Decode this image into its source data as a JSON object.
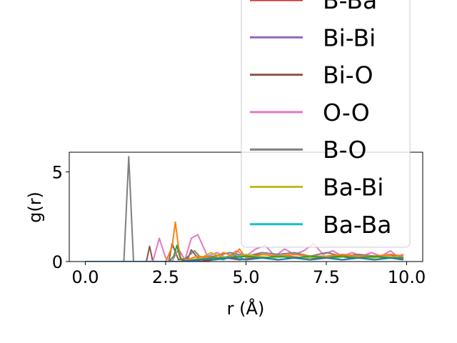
{
  "chart_data": {
    "type": "line",
    "xlabel": "r (Å)",
    "ylabel": "g(r)",
    "xlim": [
      -0.5,
      10.5
    ],
    "ylim": [
      0,
      6.1
    ],
    "xticks": [
      0.0,
      2.5,
      5.0,
      7.5,
      10.0
    ],
    "xtick_labels": [
      "0.0",
      "2.5",
      "5.0",
      "7.5",
      "10.0"
    ],
    "yticks": [
      0,
      5
    ],
    "ytick_labels": [
      "0",
      "5"
    ],
    "grid": false,
    "legend_placement": "top-right",
    "legend_entries": [
      "B-Ba",
      "Bi-Bi",
      "Bi-O",
      "O-O",
      "B-O",
      "Ba-Bi",
      "Ba-Ba"
    ],
    "series": [
      {
        "name": "B-Ba",
        "color": "#d62728",
        "x": [
          0.0,
          1.0,
          2.0,
          3.0,
          3.4,
          3.6,
          4.0,
          4.4,
          4.8,
          5.3,
          5.8,
          6.3,
          6.8,
          7.3,
          7.8,
          8.3,
          8.8,
          9.3,
          9.9
        ],
        "y": [
          0.0,
          0.0,
          0.0,
          0.0,
          0.1,
          0.0,
          0.1,
          0.2,
          0.1,
          0.2,
          0.2,
          0.3,
          0.2,
          0.2,
          0.3,
          0.2,
          0.3,
          0.2,
          0.2
        ]
      },
      {
        "name": "Bi-Bi",
        "color": "#9467bd",
        "x": [
          0.0,
          1.0,
          2.0,
          3.0,
          3.4,
          3.7,
          4.0,
          4.5,
          5.0,
          5.5,
          6.0,
          6.5,
          7.0,
          7.5,
          8.0,
          8.5,
          9.0,
          9.5,
          9.9
        ],
        "y": [
          0.0,
          0.0,
          0.0,
          0.0,
          0.0,
          0.3,
          0.1,
          0.2,
          0.3,
          0.2,
          0.3,
          0.2,
          0.3,
          0.2,
          0.3,
          0.2,
          0.3,
          0.2,
          0.3
        ]
      },
      {
        "name": "Bi-O",
        "color": "#8c564b",
        "x": [
          0.0,
          1.9,
          2.0,
          2.1,
          2.3,
          2.6,
          2.7,
          2.9,
          3.2,
          3.3,
          3.5,
          3.8,
          4.1,
          4.5,
          5.0,
          5.5,
          6.0,
          6.5,
          7.0,
          7.5,
          8.0,
          8.5,
          9.0,
          9.5,
          9.9
        ],
        "y": [
          0.0,
          0.0,
          0.85,
          0.0,
          0.0,
          0.0,
          1.0,
          0.1,
          0.2,
          0.65,
          0.2,
          0.3,
          0.2,
          0.3,
          0.3,
          0.4,
          0.3,
          0.4,
          0.3,
          0.3,
          0.3,
          0.4,
          0.3,
          0.3,
          0.3
        ]
      },
      {
        "name": "O-O",
        "color": "#e377c2",
        "x": [
          0.0,
          2.1,
          2.3,
          2.5,
          2.7,
          2.9,
          3.1,
          3.3,
          3.5,
          3.8,
          4.1,
          4.4,
          4.7,
          5.0,
          5.3,
          5.6,
          5.9,
          6.2,
          6.5,
          6.8,
          7.1,
          7.4,
          7.7,
          8.0,
          8.3,
          8.6,
          8.9,
          9.2,
          9.5,
          9.7,
          9.9
        ],
        "y": [
          0.0,
          0.0,
          1.3,
          0.2,
          0.0,
          0.7,
          0.1,
          1.3,
          1.5,
          0.3,
          0.5,
          0.2,
          0.6,
          0.3,
          0.7,
          0.9,
          0.3,
          0.7,
          0.4,
          0.6,
          1.0,
          0.4,
          0.6,
          0.3,
          0.5,
          0.3,
          0.5,
          0.3,
          0.6,
          0.3,
          0.4
        ]
      },
      {
        "name": "B-O",
        "color": "#7f7f7f",
        "x": [
          0.0,
          1.2,
          1.35,
          1.5,
          3.0,
          3.2,
          3.4,
          3.6,
          4.0,
          4.5,
          5.0,
          5.5,
          6.0,
          6.5,
          7.0,
          7.5,
          8.0,
          8.5,
          9.0,
          9.5,
          9.9
        ],
        "y": [
          0.0,
          0.0,
          5.85,
          0.0,
          0.0,
          0.3,
          0.6,
          0.2,
          0.3,
          0.5,
          0.3,
          0.5,
          0.4,
          0.5,
          0.3,
          0.5,
          0.3,
          0.4,
          0.3,
          0.4,
          0.3
        ]
      },
      {
        "name": "Ba-Bi",
        "color": "#bcbd22",
        "x": [
          0.0,
          2.0,
          3.0,
          3.3,
          3.6,
          3.9,
          4.2,
          4.6,
          5.0,
          5.4,
          5.8,
          6.2,
          6.6,
          7.0,
          7.4,
          7.8,
          8.2,
          8.6,
          9.0,
          9.4,
          9.9
        ],
        "y": [
          0.0,
          0.0,
          0.0,
          0.1,
          0.2,
          0.5,
          0.3,
          0.2,
          0.4,
          0.3,
          0.2,
          0.3,
          0.2,
          0.2,
          0.3,
          0.2,
          0.3,
          0.2,
          0.2,
          0.3,
          0.2
        ]
      },
      {
        "name": "Ba-Ba",
        "color": "#17becf",
        "x": [
          0.0,
          3.0,
          3.6,
          4.0,
          4.3,
          4.6,
          5.0,
          5.5,
          6.0,
          6.5,
          7.0,
          7.5,
          8.0,
          8.5,
          9.0,
          9.5,
          9.9
        ],
        "y": [
          0.0,
          0.0,
          0.1,
          0.2,
          0.1,
          0.4,
          0.1,
          0.2,
          0.1,
          0.2,
          0.1,
          0.2,
          0.1,
          0.2,
          0.1,
          0.2,
          0.1
        ]
      },
      {
        "color": "#ff7f0e",
        "x": [
          0.0,
          2.5,
          2.7,
          2.8,
          2.9,
          3.0,
          3.5,
          4.0,
          4.3,
          4.6,
          4.8,
          5.0,
          5.5,
          6.0,
          6.5,
          7.0,
          7.5,
          8.0,
          8.5,
          9.0,
          9.5,
          9.9
        ],
        "y": [
          0.0,
          0.0,
          0.8,
          2.2,
          0.8,
          0.0,
          0.3,
          0.2,
          0.5,
          0.3,
          0.7,
          0.2,
          0.4,
          0.3,
          0.4,
          0.3,
          0.3,
          0.4,
          0.3,
          0.3,
          0.4,
          0.3
        ]
      },
      {
        "color": "#2ca02c",
        "x": [
          0.0,
          2.6,
          2.75,
          2.85,
          2.95,
          3.1,
          3.5,
          4.0,
          4.5,
          5.0,
          5.5,
          6.0,
          6.5,
          7.0,
          7.5,
          8.0,
          8.5,
          9.0,
          9.5,
          9.9
        ],
        "y": [
          0.0,
          0.0,
          0.3,
          0.9,
          0.2,
          0.0,
          0.1,
          0.2,
          0.2,
          0.3,
          0.2,
          0.3,
          0.2,
          0.3,
          0.2,
          0.3,
          0.2,
          0.3,
          0.2,
          0.2
        ]
      },
      {
        "color": "#1f77b4",
        "x": [
          0.0,
          3.0,
          3.5,
          4.0,
          4.5,
          5.0,
          5.5,
          6.0,
          6.5,
          7.0,
          7.5,
          8.0,
          8.5,
          9.0,
          9.5,
          9.9
        ],
        "y": [
          0.0,
          0.0,
          0.1,
          0.1,
          0.2,
          0.1,
          0.2,
          0.1,
          0.2,
          0.1,
          0.2,
          0.1,
          0.2,
          0.1,
          0.2,
          0.1
        ]
      }
    ]
  }
}
